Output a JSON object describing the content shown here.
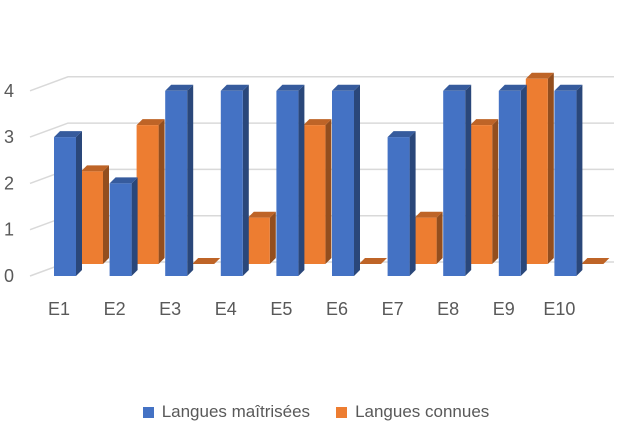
{
  "chart_data": {
    "type": "bar",
    "title": "",
    "xlabel": "",
    "ylabel": "",
    "categories": [
      "E1",
      "E2",
      "E3",
      "E4",
      "E5",
      "E6",
      "E7",
      "E8",
      "E9",
      "E10"
    ],
    "y_ticks": [
      "0",
      "1",
      "2",
      "3",
      "4"
    ],
    "ylim": [
      0,
      4
    ],
    "grid": true,
    "legend_position": "bottom",
    "series": [
      {
        "name": "Langues maîtrisées",
        "color": "#4472C4",
        "values": [
          3,
          2,
          4,
          4,
          4,
          4,
          3,
          4,
          4,
          4
        ]
      },
      {
        "name": "Langues connues",
        "color": "#ED7D31",
        "values": [
          2,
          3,
          0,
          1,
          3,
          0,
          1,
          3,
          4,
          0
        ]
      }
    ]
  }
}
